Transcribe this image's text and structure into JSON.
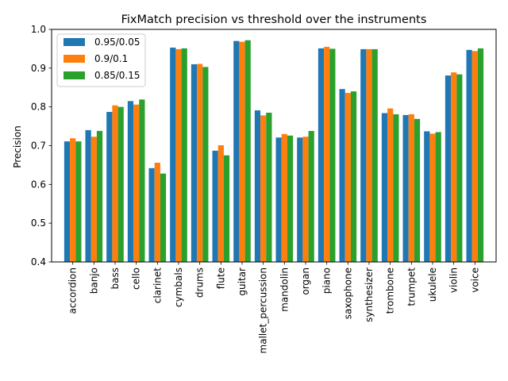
{
  "chart_data": {
    "type": "bar",
    "title": "FixMatch precision vs threshold over the instruments",
    "xlabel": "",
    "ylabel": "Precision",
    "ylim": [
      0.4,
      1.0
    ],
    "yticks": [
      "0.4",
      "0.5",
      "0.6",
      "0.7",
      "0.8",
      "0.9",
      "1.0"
    ],
    "grid": false,
    "legend_position": "top-left",
    "categories": [
      "accordion",
      "banjo",
      "bass",
      "cello",
      "clarinet",
      "cymbals",
      "drums",
      "flute",
      "guitar",
      "mallet_percussion",
      "mandolin",
      "organ",
      "piano",
      "saxophone",
      "synthesizer",
      "trombone",
      "trumpet",
      "ukulele",
      "violin",
      "voice"
    ],
    "series": [
      {
        "name": "0.95/0.05",
        "color": "#1f77b4",
        "values": [
          0.711,
          0.74,
          0.787,
          0.815,
          0.642,
          0.953,
          0.91,
          0.687,
          0.97,
          0.791,
          0.721,
          0.721,
          0.951,
          0.846,
          0.949,
          0.784,
          0.779,
          0.737,
          0.881,
          0.947
        ]
      },
      {
        "name": "0.9/0.1",
        "color": "#ff7f0e",
        "values": [
          0.719,
          0.723,
          0.804,
          0.806,
          0.656,
          0.949,
          0.911,
          0.701,
          0.968,
          0.778,
          0.73,
          0.723,
          0.955,
          0.836,
          0.949,
          0.796,
          0.781,
          0.731,
          0.889,
          0.944
        ]
      },
      {
        "name": "0.85/0.15",
        "color": "#2ca02c",
        "values": [
          0.711,
          0.738,
          0.8,
          0.819,
          0.628,
          0.951,
          0.903,
          0.675,
          0.972,
          0.785,
          0.726,
          0.738,
          0.95,
          0.84,
          0.949,
          0.781,
          0.769,
          0.735,
          0.884,
          0.951
        ]
      }
    ]
  }
}
